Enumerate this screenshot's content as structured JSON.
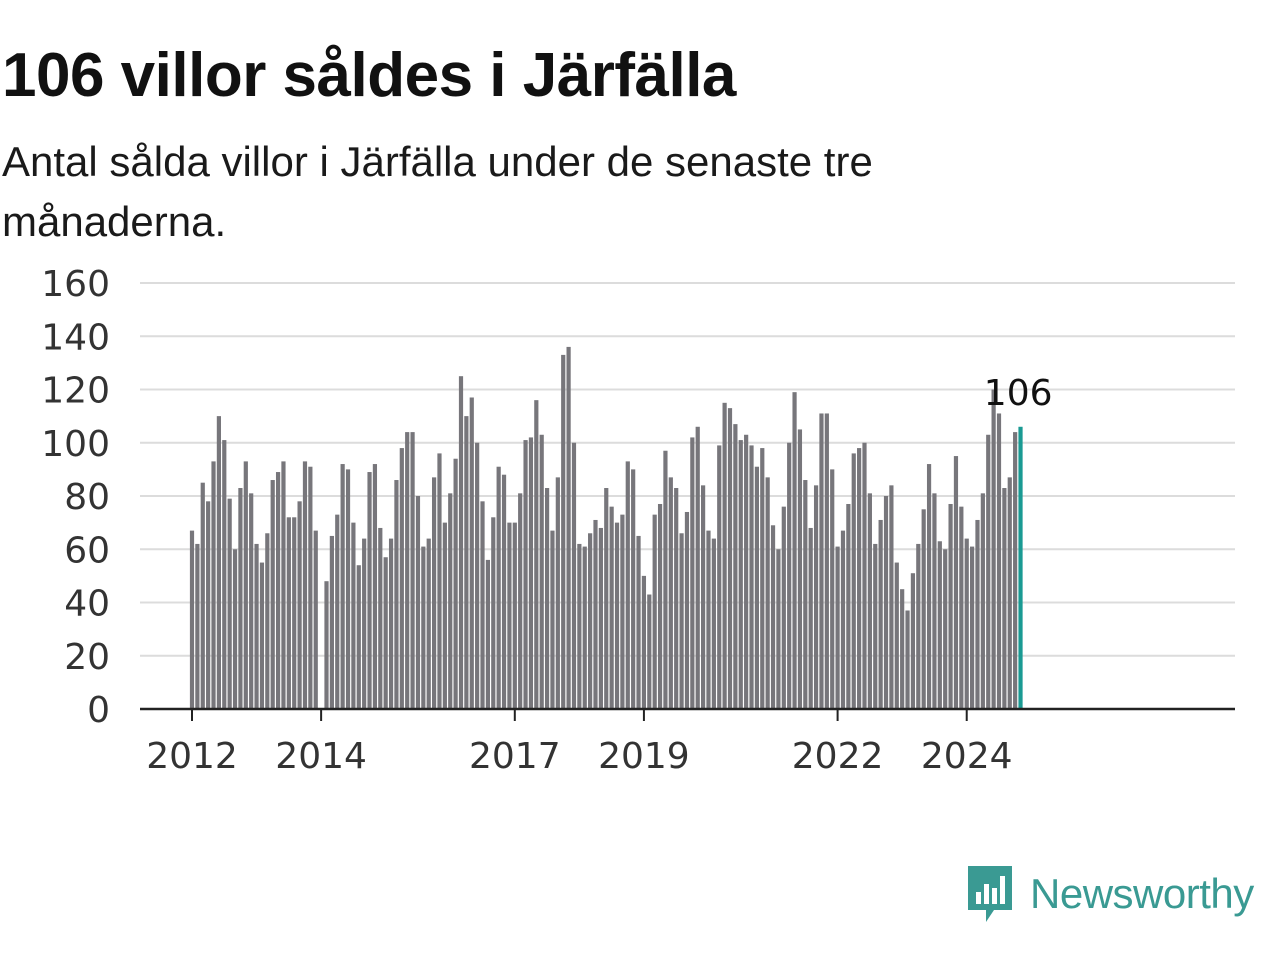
{
  "header": {
    "title": "106 villor såldes i Järfälla",
    "subtitle": "Antal sålda villor i Järfälla under de senaste tre månaderna."
  },
  "brand": {
    "name": "Newsworthy",
    "icon": "newsworthy-logo-icon",
    "color": "#3a9a93"
  },
  "chart_data": {
    "type": "bar",
    "x_start": "2012-01",
    "interval": "month",
    "ylim": [
      0,
      160
    ],
    "yticks": [
      "0",
      "20",
      "40",
      "60",
      "80",
      "100",
      "120",
      "140",
      "160"
    ],
    "xticks": [
      {
        "label": "2012",
        "month": "2012-01"
      },
      {
        "label": "2014",
        "month": "2014-01"
      },
      {
        "label": "2017",
        "month": "2017-01"
      },
      {
        "label": "2019",
        "month": "2019-01"
      },
      {
        "label": "2022",
        "month": "2022-01"
      },
      {
        "label": "2024",
        "month": "2024-01"
      }
    ],
    "values": [
      67,
      62,
      85,
      78,
      93,
      110,
      101,
      79,
      60,
      83,
      93,
      81,
      62,
      55,
      66,
      86,
      89,
      93,
      72,
      72,
      78,
      93,
      91,
      67,
      null,
      48,
      65,
      73,
      92,
      90,
      70,
      54,
      64,
      89,
      92,
      68,
      57,
      64,
      86,
      98,
      104,
      104,
      80,
      61,
      64,
      87,
      96,
      70,
      81,
      94,
      125,
      110,
      117,
      100,
      78,
      56,
      72,
      91,
      88,
      70,
      70,
      81,
      101,
      102,
      116,
      103,
      83,
      67,
      87,
      133,
      136,
      100,
      62,
      61,
      66,
      71,
      68,
      83,
      76,
      70,
      73,
      93,
      90,
      65,
      50,
      43,
      73,
      77,
      97,
      87,
      83,
      66,
      74,
      102,
      106,
      84,
      67,
      64,
      99,
      115,
      113,
      107,
      101,
      103,
      99,
      91,
      98,
      87,
      69,
      60,
      76,
      100,
      119,
      105,
      86,
      68,
      84,
      111,
      111,
      90,
      61,
      67,
      77,
      96,
      98,
      100,
      81,
      62,
      71,
      80,
      84,
      55,
      45,
      37,
      51,
      62,
      75,
      92,
      81,
      63,
      60,
      77,
      95,
      76,
      64,
      61,
      71,
      81,
      103,
      120,
      111,
      83,
      87,
      104,
      106
    ],
    "highlight": {
      "value": 106,
      "label": "106",
      "color": "#1a9a93"
    },
    "bar_color": "#77767b",
    "grid": true
  }
}
